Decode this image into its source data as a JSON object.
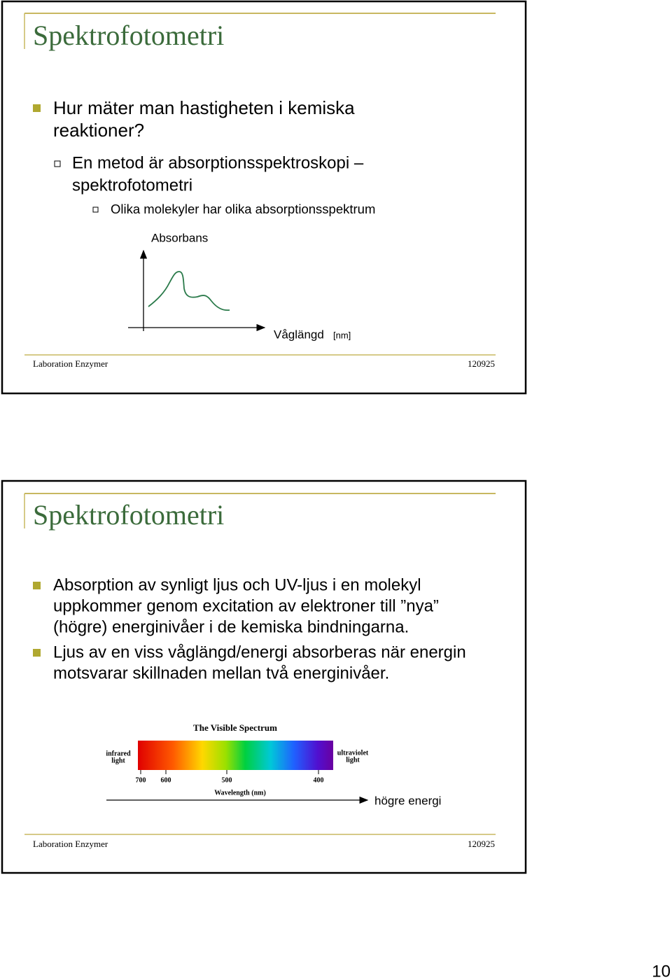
{
  "slides": [
    {
      "title": "Spektrofotometri",
      "bullets": [
        {
          "lines": [
            "Hur mäter man hastigheten i kemiska",
            "reaktioner?"
          ],
          "sub": [
            {
              "lines": [
                "En metod är absorptionsspektroskopi –",
                "spektrofotometri"
              ],
              "sub": [
                {
                  "lines": [
                    "Olika molekyler har olika absorptionsspektrum"
                  ]
                }
              ]
            }
          ]
        }
      ],
      "figure": {
        "y_label": "Absorbans",
        "x_label": "Våglängd",
        "x_unit": "[nm]"
      },
      "footer": {
        "left": "Laboration Enzymer",
        "right": "120925"
      }
    },
    {
      "title": "Spektrofotometri",
      "bullets": [
        {
          "lines": [
            "Absorption av synligt ljus och UV-ljus i en molekyl",
            "uppkommer genom excitation av elektroner till ”nya”",
            "(högre) energinivåer i de kemiska bindningarna."
          ]
        },
        {
          "lines": [
            "Ljus av en viss våglängd/energi absorberas när energin",
            "motsvarar skillnaden mellan två energinivåer."
          ]
        }
      ],
      "figure": {
        "title": "The Visible Spectrum",
        "left_label": [
          "infrared",
          "light"
        ],
        "right_label": [
          "ultraviolet",
          "light"
        ],
        "ticks": [
          700,
          600,
          500,
          400
        ],
        "axis_label": "Wavelength (nm)",
        "arrow_label": "högre energi"
      },
      "footer": {
        "left": "Laboration Enzymer",
        "right": "120925"
      }
    }
  ],
  "page_number": "10"
}
